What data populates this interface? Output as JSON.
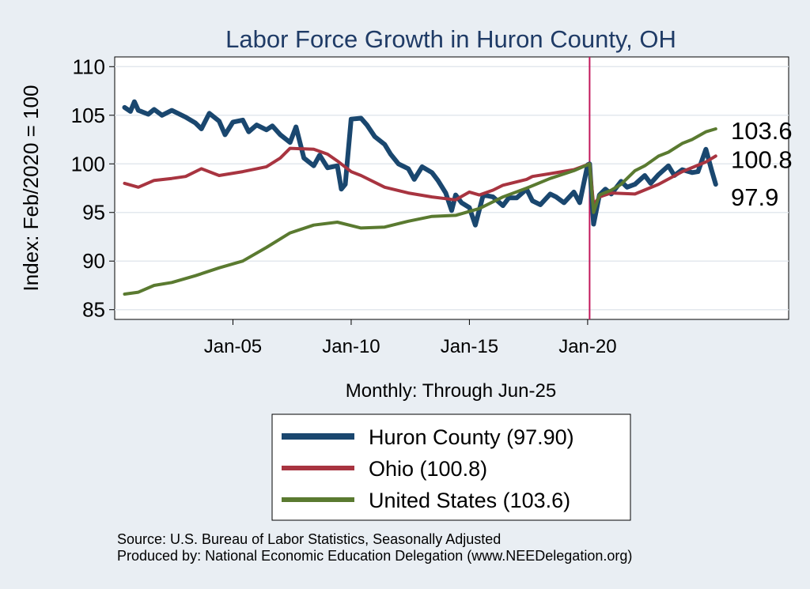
{
  "chart_data": {
    "type": "line",
    "title": "Labor Force Growth in Huron  County, OH",
    "xlabel": "Monthly: Through Jun-25",
    "ylabel": "Index: Feb/2020 = 100",
    "xlim": [
      "2000-01",
      "2028-07"
    ],
    "ylim": [
      84,
      111
    ],
    "yticks": [
      85,
      90,
      95,
      100,
      105,
      110
    ],
    "xticks": [
      {
        "date": "2005-01",
        "label": "Jan-05"
      },
      {
        "date": "2010-01",
        "label": "Jan-10"
      },
      {
        "date": "2015-01",
        "label": "Jan-15"
      },
      {
        "date": "2020-01",
        "label": "Jan-20"
      }
    ],
    "vline": {
      "date": "2020-02",
      "color": "#c2185b"
    },
    "grid": true,
    "legend_position": "bottom",
    "end_labels": [
      {
        "text": "103.6",
        "value": 103.6
      },
      {
        "text": "100.8",
        "value": 100.8
      },
      {
        "text": "97.9",
        "value": 97.9
      }
    ],
    "series": [
      {
        "name": "Huron  County (97.90)",
        "color": "#1a476f",
        "points": [
          [
            "2000-06",
            105.8
          ],
          [
            "2000-09",
            105.4
          ],
          [
            "2000-11",
            106.4
          ],
          [
            "2001-01",
            105.5
          ],
          [
            "2001-06",
            105.1
          ],
          [
            "2001-09",
            105.6
          ],
          [
            "2002-01",
            105.0
          ],
          [
            "2002-06",
            105.5
          ],
          [
            "2003-01",
            104.8
          ],
          [
            "2003-06",
            104.2
          ],
          [
            "2003-09",
            103.6
          ],
          [
            "2004-01",
            105.2
          ],
          [
            "2004-06",
            104.4
          ],
          [
            "2004-09",
            103.0
          ],
          [
            "2005-01",
            104.3
          ],
          [
            "2005-06",
            104.5
          ],
          [
            "2005-09",
            103.3
          ],
          [
            "2006-01",
            104.0
          ],
          [
            "2006-06",
            103.5
          ],
          [
            "2006-09",
            103.9
          ],
          [
            "2007-01",
            103.0
          ],
          [
            "2007-06",
            102.2
          ],
          [
            "2007-09",
            103.8
          ],
          [
            "2008-01",
            100.6
          ],
          [
            "2008-06",
            99.8
          ],
          [
            "2008-09",
            100.9
          ],
          [
            "2009-01",
            99.6
          ],
          [
            "2009-06",
            99.8
          ],
          [
            "2009-08",
            97.4
          ],
          [
            "2009-10",
            97.9
          ],
          [
            "2010-01",
            104.6
          ],
          [
            "2010-06",
            104.7
          ],
          [
            "2010-09",
            104.0
          ],
          [
            "2011-01",
            102.8
          ],
          [
            "2011-06",
            102.0
          ],
          [
            "2011-09",
            101.0
          ],
          [
            "2012-01",
            100.0
          ],
          [
            "2012-06",
            99.5
          ],
          [
            "2012-09",
            98.4
          ],
          [
            "2013-01",
            99.7
          ],
          [
            "2013-06",
            99.1
          ],
          [
            "2013-09",
            98.3
          ],
          [
            "2014-01",
            97.0
          ],
          [
            "2014-04",
            95.2
          ],
          [
            "2014-06",
            96.8
          ],
          [
            "2014-09",
            96.0
          ],
          [
            "2015-01",
            95.5
          ],
          [
            "2015-04",
            93.7
          ],
          [
            "2015-08",
            96.8
          ],
          [
            "2016-01",
            96.6
          ],
          [
            "2016-06",
            95.7
          ],
          [
            "2016-09",
            96.5
          ],
          [
            "2017-01",
            96.5
          ],
          [
            "2017-06",
            97.4
          ],
          [
            "2017-09",
            96.2
          ],
          [
            "2018-01",
            95.8
          ],
          [
            "2018-06",
            96.9
          ],
          [
            "2018-09",
            96.6
          ],
          [
            "2019-01",
            96.0
          ],
          [
            "2019-06",
            97.1
          ],
          [
            "2019-09",
            96.0
          ],
          [
            "2020-01",
            99.9
          ],
          [
            "2020-02",
            100.0
          ],
          [
            "2020-04",
            93.8
          ],
          [
            "2020-07",
            96.8
          ],
          [
            "2020-10",
            97.4
          ],
          [
            "2021-01",
            96.9
          ],
          [
            "2021-06",
            98.2
          ],
          [
            "2021-09",
            97.6
          ],
          [
            "2022-01",
            97.9
          ],
          [
            "2022-06",
            98.8
          ],
          [
            "2022-09",
            98.0
          ],
          [
            "2023-01",
            98.9
          ],
          [
            "2023-06",
            99.8
          ],
          [
            "2023-09",
            98.8
          ],
          [
            "2024-01",
            99.4
          ],
          [
            "2024-06",
            99.1
          ],
          [
            "2024-09",
            99.2
          ],
          [
            "2025-01",
            101.5
          ],
          [
            "2025-04",
            99.3
          ],
          [
            "2025-06",
            97.9
          ]
        ]
      },
      {
        "name": "Ohio (100.8)",
        "color": "#a83440",
        "points": [
          [
            "2000-06",
            98.0
          ],
          [
            "2001-01",
            97.6
          ],
          [
            "2001-09",
            98.3
          ],
          [
            "2002-06",
            98.5
          ],
          [
            "2003-01",
            98.7
          ],
          [
            "2003-09",
            99.5
          ],
          [
            "2004-06",
            98.8
          ],
          [
            "2005-06",
            99.2
          ],
          [
            "2006-06",
            99.7
          ],
          [
            "2007-01",
            100.6
          ],
          [
            "2007-06",
            101.6
          ],
          [
            "2008-06",
            101.5
          ],
          [
            "2009-01",
            101.0
          ],
          [
            "2009-06",
            100.3
          ],
          [
            "2010-01",
            99.2
          ],
          [
            "2010-06",
            98.8
          ],
          [
            "2011-06",
            97.6
          ],
          [
            "2012-06",
            97.0
          ],
          [
            "2013-06",
            96.6
          ],
          [
            "2014-06",
            96.3
          ],
          [
            "2015-01",
            97.1
          ],
          [
            "2015-06",
            96.8
          ],
          [
            "2016-01",
            97.3
          ],
          [
            "2016-06",
            97.8
          ],
          [
            "2017-06",
            98.4
          ],
          [
            "2017-09",
            98.7
          ],
          [
            "2018-06",
            99.0
          ],
          [
            "2019-06",
            99.4
          ],
          [
            "2020-02",
            100.0
          ],
          [
            "2020-04",
            95.8
          ],
          [
            "2020-07",
            96.6
          ],
          [
            "2021-01",
            97.0
          ],
          [
            "2022-01",
            96.9
          ],
          [
            "2023-01",
            97.9
          ],
          [
            "2024-01",
            99.2
          ],
          [
            "2025-01",
            100.2
          ],
          [
            "2025-06",
            100.8
          ]
        ]
      },
      {
        "name": "United States (103.6)",
        "color": "#5a7a30",
        "points": [
          [
            "2000-06",
            86.6
          ],
          [
            "2001-01",
            86.8
          ],
          [
            "2001-09",
            87.5
          ],
          [
            "2002-06",
            87.8
          ],
          [
            "2003-06",
            88.5
          ],
          [
            "2004-06",
            89.3
          ],
          [
            "2005-06",
            90.0
          ],
          [
            "2006-06",
            91.4
          ],
          [
            "2007-06",
            92.9
          ],
          [
            "2008-06",
            93.7
          ],
          [
            "2009-06",
            94.0
          ],
          [
            "2010-06",
            93.4
          ],
          [
            "2011-06",
            93.5
          ],
          [
            "2012-06",
            94.1
          ],
          [
            "2013-06",
            94.6
          ],
          [
            "2014-06",
            94.7
          ],
          [
            "2015-06",
            95.4
          ],
          [
            "2016-06",
            96.6
          ],
          [
            "2017-06",
            97.5
          ],
          [
            "2018-06",
            98.5
          ],
          [
            "2019-06",
            99.3
          ],
          [
            "2020-02",
            100.0
          ],
          [
            "2020-04",
            95.0
          ],
          [
            "2020-07",
            96.8
          ],
          [
            "2021-01",
            97.3
          ],
          [
            "2021-06",
            97.9
          ],
          [
            "2022-01",
            99.3
          ],
          [
            "2022-06",
            99.8
          ],
          [
            "2023-01",
            100.8
          ],
          [
            "2023-06",
            101.2
          ],
          [
            "2024-01",
            102.1
          ],
          [
            "2024-06",
            102.5
          ],
          [
            "2025-01",
            103.3
          ],
          [
            "2025-06",
            103.6
          ]
        ]
      }
    ]
  },
  "footer": {
    "source": "Source: U.S. Bureau of Labor Statistics, Seasonally Adjusted",
    "produced": "Produced by: National Economic Education Delegation (www.NEEDelegation.org)"
  }
}
